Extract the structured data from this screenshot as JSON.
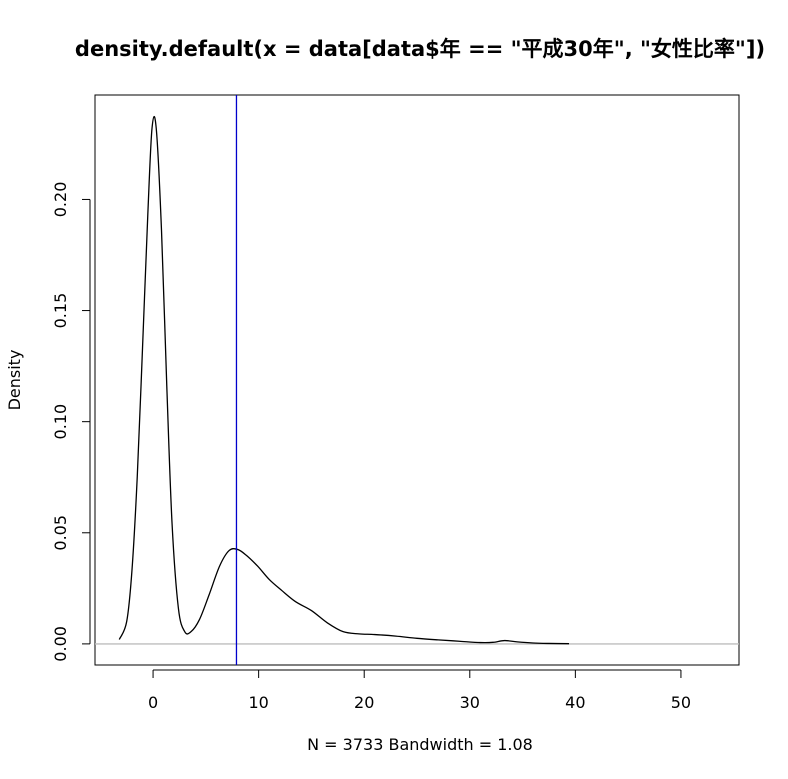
{
  "chart_data": {
    "type": "line",
    "title": "density.default(x = data[data$年 == \"平成30年\", \"女性比率\"])",
    "xlabel": "N = 3733   Bandwidth = 1.08",
    "ylabel": "Density",
    "xlim": [
      -5.5,
      55.5
    ],
    "ylim": [
      -0.0095,
      0.247
    ],
    "x_ticks": [
      0,
      10,
      20,
      30,
      40,
      50
    ],
    "x_tick_labels": [
      "0",
      "10",
      "20",
      "30",
      "40",
      "50"
    ],
    "y_ticks": [
      0.0,
      0.05,
      0.1,
      0.15,
      0.2
    ],
    "y_tick_labels": [
      "0.00",
      "0.05",
      "0.10",
      "0.15",
      "0.20"
    ],
    "grid": false,
    "legend": "none",
    "series": [
      {
        "color": "#000000",
        "x": [
          -3.2,
          -2.5,
          -2.0,
          -1.5,
          -1.0,
          -0.5,
          -0.1,
          0.3,
          0.8,
          1.3,
          1.8,
          2.4,
          3.0,
          3.6,
          4.4,
          5.3,
          6.3,
          7.2,
          8.0,
          8.8,
          9.9,
          11.0,
          12.2,
          13.5,
          15.0,
          16.5,
          18.0,
          19.5,
          21.0,
          23.0,
          25.0,
          27.0,
          29.0,
          31.0,
          32.2,
          33.3,
          34.5,
          36.0,
          37.5,
          39.4
        ],
        "values": [
          0.002,
          0.01,
          0.033,
          0.075,
          0.133,
          0.193,
          0.232,
          0.232,
          0.186,
          0.116,
          0.054,
          0.016,
          0.0055,
          0.0055,
          0.011,
          0.022,
          0.035,
          0.042,
          0.0425,
          0.04,
          0.035,
          0.029,
          0.024,
          0.019,
          0.015,
          0.0095,
          0.0055,
          0.0045,
          0.0042,
          0.0035,
          0.0025,
          0.0018,
          0.0012,
          0.0006,
          0.0007,
          0.0015,
          0.0009,
          0.0004,
          0.0002,
          0.0001
        ]
      }
    ],
    "vline": {
      "x": 7.9,
      "color": "#0000cc"
    },
    "hline": {
      "y": 0,
      "color": "#bebebe"
    }
  }
}
